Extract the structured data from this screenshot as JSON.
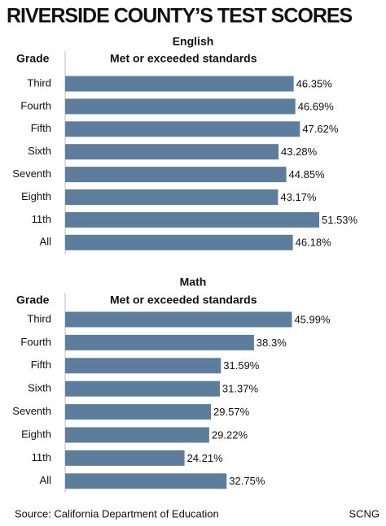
{
  "title": "RIVERSIDE COUNTY’S TEST SCORES",
  "source": "Source: California Department of Education",
  "credit": "SCNG",
  "chart_data": [
    {
      "type": "bar",
      "orientation": "horizontal",
      "title": "English",
      "category_label": "Grade",
      "value_label": "Met or exceeded standards",
      "categories": [
        "Third",
        "Fourth",
        "Fifth",
        "Sixth",
        "Seventh",
        "Eighth",
        "11th",
        "All"
      ],
      "values": [
        46.35,
        46.69,
        47.62,
        43.28,
        44.85,
        43.17,
        51.53,
        46.18
      ],
      "value_labels": [
        "46.35%",
        "46.69%",
        "47.62%",
        "43.28%",
        "44.85%",
        "43.17%",
        "51.53%",
        "46.18%"
      ],
      "color": "#5d7d9c"
    },
    {
      "type": "bar",
      "orientation": "horizontal",
      "title": "Math",
      "category_label": "Grade",
      "value_label": "Met or exceeded standards",
      "categories": [
        "Third",
        "Fourth",
        "Fifth",
        "Sixth",
        "Seventh",
        "Eighth",
        "11th",
        "All"
      ],
      "values": [
        45.99,
        38.3,
        31.59,
        31.37,
        29.57,
        29.22,
        24.21,
        32.75
      ],
      "value_labels": [
        "45.99%",
        "38.3%",
        "31.59%",
        "31.37%",
        "29.57%",
        "29.22%",
        "24.21%",
        "32.75%"
      ],
      "color": "#5d7d9c"
    }
  ]
}
